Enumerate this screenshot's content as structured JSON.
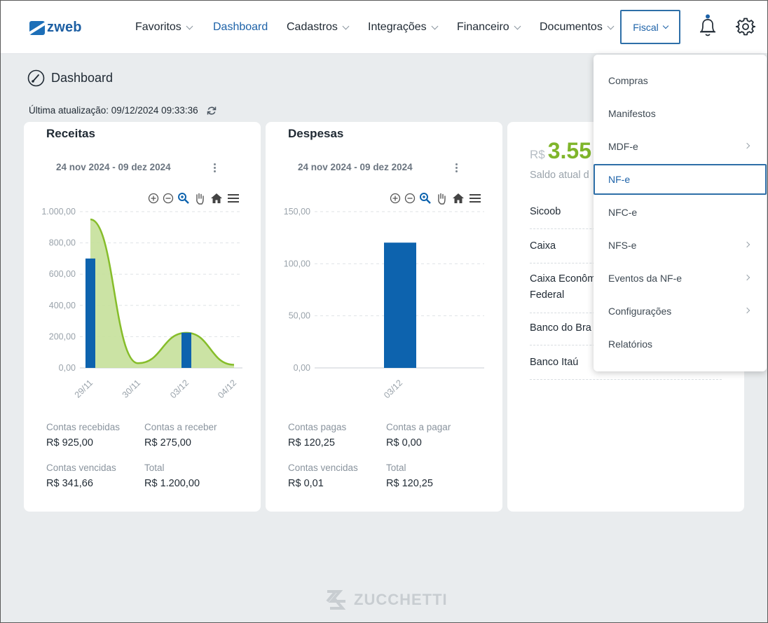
{
  "brand": {
    "name": "zweb"
  },
  "nav": {
    "items": [
      {
        "label": "Favoritos"
      },
      {
        "label": "Dashboard"
      },
      {
        "label": "Cadastros"
      },
      {
        "label": "Integrações"
      },
      {
        "label": "Financeiro"
      },
      {
        "label": "Documentos"
      }
    ],
    "fiscal": "Fiscal"
  },
  "page": {
    "title": "Dashboard",
    "updated_label": "Última atualização: 09/12/2024 09:33:36"
  },
  "receitas": {
    "title": "Receitas",
    "range": "24 nov 2024 - 09 dez 2024",
    "stats": {
      "recebidas_label": "Contas recebidas",
      "recebidas_value": "R$ 925,00",
      "a_receber_label": "Contas a receber",
      "a_receber_value": "R$ 275,00",
      "vencidas_label": "Contas vencidas",
      "vencidas_value": "R$ 341,66",
      "total_label": "Total",
      "total_value": "R$ 1.200,00"
    }
  },
  "despesas": {
    "title": "Despesas",
    "range": "24 nov 2024 - 09 dez 2024",
    "stats": {
      "pagas_label": "Contas pagas",
      "pagas_value": "R$ 120,25",
      "a_pagar_label": "Contas a pagar",
      "a_pagar_value": "R$ 0,00",
      "vencidas_label": "Contas vencidas",
      "vencidas_value": "R$ 0,01",
      "total_label": "Total",
      "total_value": "R$ 120,25"
    }
  },
  "saldo": {
    "currency": "R$",
    "amount": "3.55",
    "label": "Saldo atual d",
    "banks": [
      "Sicoob",
      "Caixa",
      "Caixa Econôm",
      "Federal",
      "Banco do Bra",
      "Banco Itaú"
    ]
  },
  "fiscal_menu": {
    "items": [
      {
        "label": "Compras"
      },
      {
        "label": "Manifestos"
      },
      {
        "label": "MDF-e"
      },
      {
        "label": "NF-e"
      },
      {
        "label": "NFC-e"
      },
      {
        "label": "NFS-e"
      },
      {
        "label": "Eventos da NF-e"
      },
      {
        "label": "Configurações"
      },
      {
        "label": "Relatórios"
      }
    ]
  },
  "footer": {
    "brand": "ZUCCHETTI"
  },
  "colors": {
    "accent": "#1d62a8",
    "bar": "#0d63ae",
    "area": "#c5e09a",
    "line": "#86bd2a",
    "balance": "#7fb52a"
  },
  "chart_data": [
    {
      "type": "bar",
      "title": "Receitas",
      "categories": [
        "29/11",
        "30/11",
        "03/12",
        "04/12"
      ],
      "ylim": [
        0,
        1000
      ],
      "yticks": [
        "0,00",
        "200,00",
        "400,00",
        "600,00",
        "800,00",
        "1.000,00"
      ],
      "yticks_values": [
        0,
        200,
        400,
        600,
        800,
        1000
      ],
      "series": [
        {
          "kind": "bar",
          "values": [
            700,
            0,
            225,
            0
          ]
        },
        {
          "kind": "area",
          "values": [
            950,
            30,
            225,
            20
          ]
        }
      ]
    },
    {
      "type": "bar",
      "title": "Despesas",
      "categories": [
        "03/12"
      ],
      "ylim": [
        0,
        150
      ],
      "yticks": [
        "0,00",
        "50,00",
        "100,00",
        "150,00"
      ],
      "yticks_values": [
        0,
        50,
        100,
        150
      ],
      "series": [
        {
          "kind": "bar",
          "values": [
            120.25
          ]
        }
      ]
    }
  ]
}
